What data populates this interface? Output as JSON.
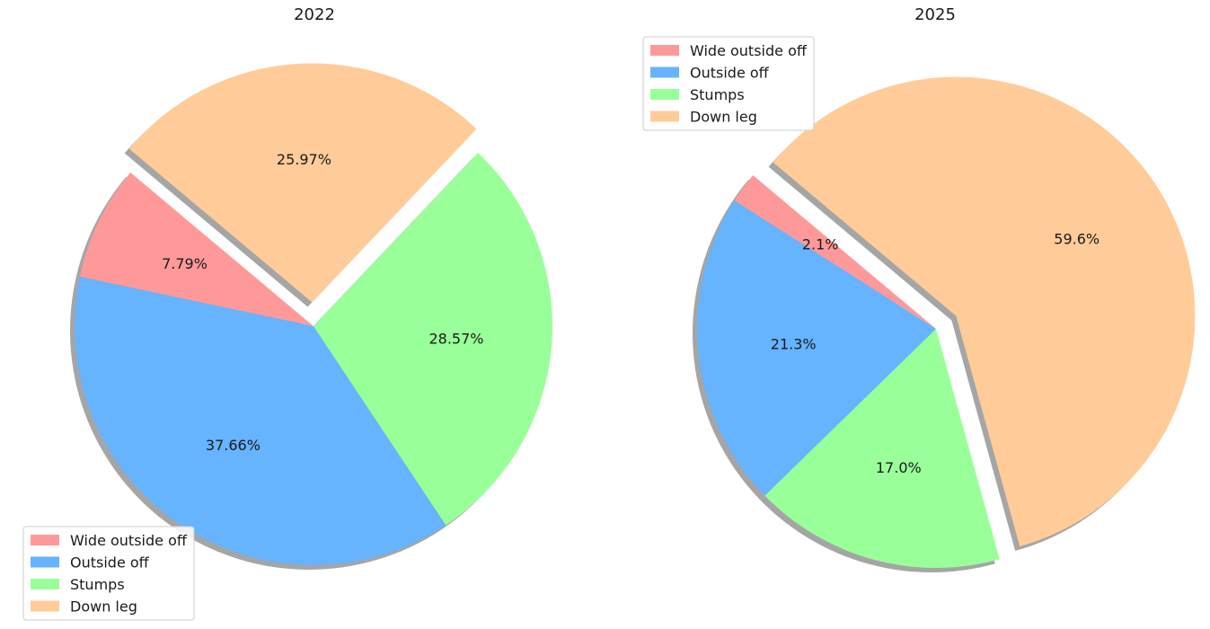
{
  "chart_data": [
    {
      "type": "pie",
      "title": "2022",
      "categories": [
        "Wide outside off",
        "Outside off",
        "Stumps",
        "Down leg"
      ],
      "values": [
        7.79,
        37.66,
        28.57,
        25.97
      ],
      "labels": [
        "7.79%",
        "37.66%",
        "28.57%",
        "25.97%"
      ],
      "exploded": [
        "Down leg"
      ],
      "shadow": true,
      "legend_position": "lower-left"
    },
    {
      "type": "pie",
      "title": "2025",
      "categories": [
        "Wide outside off",
        "Outside off",
        "Stumps",
        "Down leg"
      ],
      "values": [
        2.1,
        21.3,
        17.0,
        59.6
      ],
      "labels": [
        "2.1%",
        "21.3%",
        "17.0%",
        "59.6%"
      ],
      "exploded": [
        "Down leg"
      ],
      "shadow": true,
      "legend_position": "top-left"
    }
  ],
  "colors": {
    "Wide outside off": "#ff9999",
    "Outside off": "#66b3ff",
    "Stumps": "#99ff99",
    "Down leg": "#ffcc99",
    "shadow": "#7f7f7f",
    "text": "#1a1a1a",
    "legend_border": "#cccccc"
  }
}
